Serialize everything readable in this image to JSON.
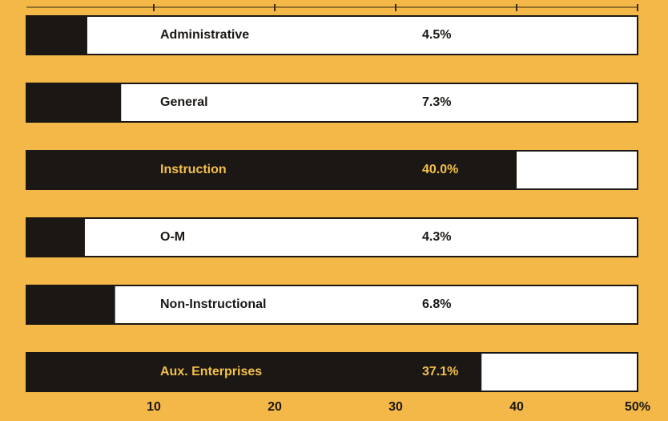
{
  "chart_data": {
    "type": "barh",
    "categories": [
      "Administrative",
      "General",
      "Instruction",
      "O-M",
      "Non-Instructional",
      "Aux. Enterprises"
    ],
    "values": [
      4.5,
      7.3,
      40.0,
      4.3,
      6.8,
      37.1
    ],
    "value_labels": [
      "4.5%",
      "7.3%",
      "40.0%",
      "4.3%",
      "6.8%",
      "37.1%"
    ],
    "color": "#1a1714",
    "xlim": [
      0,
      50
    ],
    "xticks": [
      10,
      20,
      30,
      40,
      {
        "value": 50,
        "label": "50%"
      }
    ]
  }
}
